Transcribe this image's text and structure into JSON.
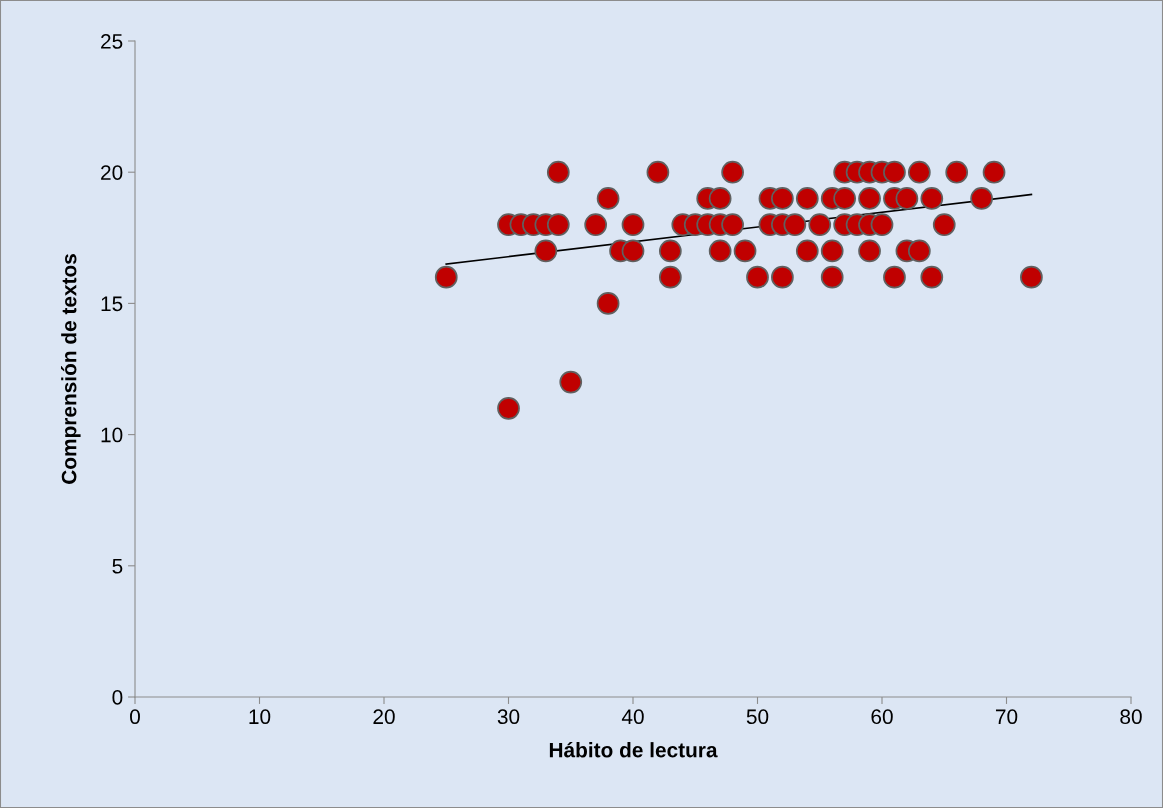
{
  "chart_data": {
    "type": "scatter",
    "xlabel": "Hábito de lectura",
    "ylabel": "Comprensión de textos",
    "xlim": [
      0,
      80
    ],
    "xticks": [
      0,
      10,
      20,
      30,
      40,
      50,
      60,
      70,
      80
    ],
    "ylim": [
      0,
      25
    ],
    "yticks": [
      0,
      5,
      10,
      15,
      20,
      25
    ],
    "grid": false,
    "legend": false,
    "series": [
      {
        "marker": "circle",
        "color": "#c00000",
        "x": [
          25,
          30,
          30,
          31,
          32,
          33,
          33,
          34,
          34,
          35,
          37,
          38,
          38,
          39,
          40,
          40,
          42,
          43,
          43,
          44,
          45,
          46,
          46,
          47,
          47,
          47,
          48,
          48,
          49,
          50,
          51,
          51,
          52,
          52,
          52,
          53,
          54,
          54,
          55,
          56,
          56,
          56,
          57,
          57,
          57,
          58,
          58,
          59,
          59,
          59,
          59,
          60,
          60,
          61,
          61,
          61,
          62,
          62,
          63,
          63,
          64,
          64,
          65,
          66,
          68,
          69,
          72
        ],
        "values": [
          16,
          18,
          11,
          18,
          18,
          18,
          17,
          18,
          20,
          12,
          18,
          19,
          15,
          17,
          18,
          17,
          20,
          17,
          16,
          18,
          18,
          19,
          18,
          19,
          18,
          17,
          20,
          18,
          17,
          16,
          19,
          18,
          19,
          18,
          16,
          18,
          19,
          17,
          18,
          19,
          17,
          16,
          20,
          19,
          18,
          20,
          18,
          20,
          19,
          18,
          17,
          20,
          18,
          20,
          19,
          16,
          19,
          17,
          20,
          17,
          19,
          16,
          18,
          20,
          19,
          20,
          16
        ]
      },
      {
        "type": "line",
        "color": "#000000",
        "x": [
          25,
          72
        ],
        "values": [
          16.5,
          19.15
        ]
      }
    ]
  }
}
